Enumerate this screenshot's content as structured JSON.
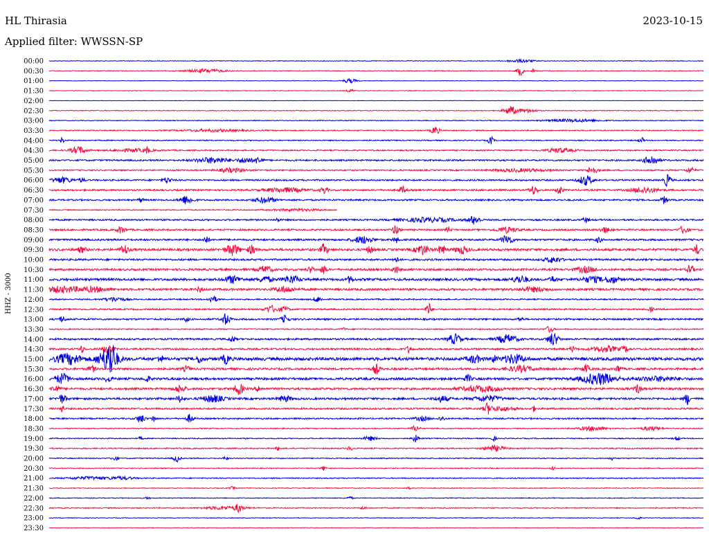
{
  "header": {
    "station": "HL Thirasia",
    "date": "2023-10-15",
    "filter": "Applied filter: WWSSN-SP"
  },
  "chart_data": {
    "type": "line",
    "title": "HL Thirasia",
    "subtitle": "Applied filter: WWSSN-SP",
    "ylabel": "HHZ - 3000",
    "xlabel": "",
    "grid": false,
    "row_minutes": 30,
    "trace_colors": [
      "#0000dd",
      "#ee1144"
    ],
    "rows": [
      {
        "label": "00:00",
        "level": 0.5,
        "events": [
          [
            0.72,
            2.0,
            0.02
          ]
        ]
      },
      {
        "label": "00:30",
        "level": 0.6,
        "events": [
          [
            0.24,
            2.5,
            0.03
          ],
          [
            0.72,
            7.0,
            0.005
          ],
          [
            0.74,
            3.0,
            0.002
          ]
        ]
      },
      {
        "label": "01:00",
        "level": 0.4,
        "events": [
          [
            0.46,
            3.0,
            0.01
          ]
        ]
      },
      {
        "label": "01:30",
        "level": 0.5,
        "events": [
          [
            0.46,
            2.0,
            0.005
          ]
        ]
      },
      {
        "label": "02:00",
        "level": 0.3,
        "events": []
      },
      {
        "label": "02:30",
        "level": 0.6,
        "events": [
          [
            0.705,
            6.0,
            0.01
          ],
          [
            0.73,
            2.5,
            0.015
          ]
        ]
      },
      {
        "label": "03:00",
        "level": 0.6,
        "events": [
          [
            0.8,
            2.0,
            0.04
          ]
        ]
      },
      {
        "label": "03:30",
        "level": 0.8,
        "events": [
          [
            0.59,
            6.0,
            0.006
          ],
          [
            0.25,
            1.5,
            0.05
          ]
        ]
      },
      {
        "label": "04:00",
        "level": 0.8,
        "events": [
          [
            0.02,
            4.0,
            0.003
          ],
          [
            0.675,
            6.0,
            0.004
          ],
          [
            0.905,
            4.0,
            0.004
          ]
        ]
      },
      {
        "label": "04:30",
        "level": 1.0,
        "events": [
          [
            0.045,
            5.0,
            0.012
          ],
          [
            0.15,
            5.0,
            0.002
          ],
          [
            0.13,
            2.0,
            0.03
          ],
          [
            0.78,
            3.0,
            0.02
          ]
        ]
      },
      {
        "label": "05:00",
        "level": 1.2,
        "events": [
          [
            0.25,
            4.0,
            0.025
          ],
          [
            0.3,
            4.0,
            0.01
          ],
          [
            0.32,
            5.0,
            0.006
          ],
          [
            0.92,
            7.0,
            0.01
          ]
        ]
      },
      {
        "label": "05:30",
        "level": 1.0,
        "events": [
          [
            0.28,
            3.0,
            0.02
          ],
          [
            0.83,
            5.0,
            0.008
          ],
          [
            0.98,
            4.0,
            0.006
          ],
          [
            0.72,
            2.0,
            0.04
          ]
        ]
      },
      {
        "label": "06:00",
        "level": 1.2,
        "events": [
          [
            0.02,
            4.0,
            0.015
          ],
          [
            0.18,
            4.0,
            0.006
          ],
          [
            0.82,
            7.0,
            0.01
          ],
          [
            0.945,
            9.0,
            0.005
          ],
          [
            0.05,
            3.0,
            0.004
          ]
        ]
      },
      {
        "label": "06:30",
        "level": 1.3,
        "events": [
          [
            0.42,
            5.0,
            0.005
          ],
          [
            0.54,
            5.0,
            0.005
          ],
          [
            0.74,
            6.0,
            0.006
          ],
          [
            0.78,
            7.0,
            0.004
          ],
          [
            0.91,
            4.0,
            0.02
          ],
          [
            0.36,
            3.0,
            0.03
          ]
        ]
      },
      {
        "label": "07:00",
        "level": 1.2,
        "events": [
          [
            0.21,
            6.0,
            0.01
          ],
          [
            0.33,
            4.0,
            0.015
          ],
          [
            0.94,
            5.0,
            0.005
          ],
          [
            0.14,
            3.0,
            0.004
          ]
        ]
      },
      {
        "label": "07:30",
        "level": 0.8,
        "events": [
          [
            0.38,
            1.5,
            0.04
          ]
        ],
        "end": 0.44
      },
      {
        "label": "08:00",
        "level": 1.2,
        "events": [
          [
            0.58,
            3.0,
            0.04
          ],
          [
            0.65,
            6.0,
            0.008
          ],
          [
            0.82,
            4.0,
            0.004
          ],
          [
            0.35,
            3.0,
            0.003
          ]
        ]
      },
      {
        "label": "08:30",
        "level": 1.3,
        "events": [
          [
            0.11,
            5.0,
            0.006
          ],
          [
            0.53,
            7.0,
            0.005
          ],
          [
            0.61,
            4.0,
            0.004
          ],
          [
            0.7,
            4.0,
            0.015
          ],
          [
            0.85,
            4.0,
            0.008
          ],
          [
            0.97,
            6.0,
            0.006
          ]
        ]
      },
      {
        "label": "09:00",
        "level": 1.4,
        "events": [
          [
            0.24,
            5.0,
            0.004
          ],
          [
            0.48,
            5.0,
            0.015
          ],
          [
            0.53,
            4.0,
            0.004
          ],
          [
            0.7,
            7.0,
            0.008
          ],
          [
            0.84,
            4.0,
            0.004
          ]
        ]
      },
      {
        "label": "09:30",
        "level": 1.8,
        "events": [
          [
            0.05,
            4.0,
            0.006
          ],
          [
            0.115,
            7.0,
            0.006
          ],
          [
            0.28,
            8.0,
            0.01
          ],
          [
            0.31,
            6.0,
            0.006
          ],
          [
            0.42,
            8.0,
            0.005
          ],
          [
            0.49,
            5.0,
            0.005
          ],
          [
            0.57,
            7.0,
            0.01
          ],
          [
            0.6,
            6.0,
            0.006
          ],
          [
            0.63,
            5.0,
            0.01
          ],
          [
            0.99,
            7.0,
            0.004
          ]
        ]
      },
      {
        "label": "10:00",
        "level": 1.4,
        "events": [
          [
            0.77,
            4.0,
            0.012
          ],
          [
            0.53,
            3.0,
            0.005
          ]
        ]
      },
      {
        "label": "10:30",
        "level": 1.6,
        "events": [
          [
            0.33,
            5.0,
            0.01
          ],
          [
            0.42,
            7.0,
            0.004
          ],
          [
            0.4,
            4.0,
            0.005
          ],
          [
            0.53,
            5.0,
            0.005
          ],
          [
            0.82,
            4.0,
            0.015
          ],
          [
            0.98,
            8.0,
            0.004
          ]
        ]
      },
      {
        "label": "11:00",
        "level": 1.8,
        "events": [
          [
            0.28,
            5.0,
            0.012
          ],
          [
            0.33,
            4.0,
            0.01
          ],
          [
            0.37,
            5.0,
            0.012
          ],
          [
            0.46,
            5.0,
            0.004
          ],
          [
            0.72,
            5.0,
            0.012
          ],
          [
            0.77,
            4.0,
            0.005
          ],
          [
            0.83,
            4.0,
            0.015
          ],
          [
            0.86,
            5.0,
            0.01
          ]
        ]
      },
      {
        "label": "11:30",
        "level": 1.7,
        "events": [
          [
            0.02,
            4.0,
            0.03
          ],
          [
            0.07,
            3.0,
            0.02
          ],
          [
            0.23,
            4.0,
            0.004
          ],
          [
            0.36,
            4.0,
            0.015
          ],
          [
            0.74,
            3.0,
            0.02
          ]
        ]
      },
      {
        "label": "12:00",
        "level": 1.0,
        "events": [
          [
            0.1,
            3.0,
            0.015
          ],
          [
            0.25,
            5.0,
            0.006
          ],
          [
            0.41,
            4.0,
            0.006
          ]
        ]
      },
      {
        "label": "12:30",
        "level": 1.2,
        "events": [
          [
            0.34,
            5.0,
            0.01
          ],
          [
            0.36,
            4.0,
            0.006
          ],
          [
            0.58,
            9.0,
            0.004
          ],
          [
            0.92,
            3.0,
            0.004
          ]
        ]
      },
      {
        "label": "13:00",
        "level": 1.3,
        "events": [
          [
            0.02,
            4.0,
            0.005
          ],
          [
            0.27,
            8.0,
            0.006
          ],
          [
            0.36,
            5.0,
            0.006
          ],
          [
            0.21,
            3.0,
            0.004
          ],
          [
            0.72,
            3.0,
            0.004
          ]
        ]
      },
      {
        "label": "13:30",
        "level": 0.9,
        "events": [
          [
            0.765,
            5.0,
            0.005
          ],
          [
            0.45,
            2.0,
            0.003
          ]
        ]
      },
      {
        "label": "14:00",
        "level": 1.4,
        "events": [
          [
            0.28,
            4.0,
            0.005
          ],
          [
            0.62,
            7.0,
            0.01
          ],
          [
            0.7,
            6.0,
            0.015
          ],
          [
            0.77,
            9.0,
            0.008
          ]
        ]
      },
      {
        "label": "14:30",
        "level": 1.4,
        "events": [
          [
            0.05,
            5.0,
            0.004
          ],
          [
            0.09,
            6.0,
            0.008
          ],
          [
            0.55,
            5.0,
            0.004
          ],
          [
            0.8,
            4.0,
            0.004
          ],
          [
            0.85,
            4.0,
            0.02
          ],
          [
            0.88,
            4.0,
            0.005
          ]
        ]
      },
      {
        "label": "15:00",
        "level": 2.4,
        "events": [
          [
            0.03,
            7.0,
            0.02
          ],
          [
            0.09,
            16.0,
            0.015
          ],
          [
            0.095,
            12.0,
            0.005
          ],
          [
            0.17,
            5.0,
            0.004
          ],
          [
            0.23,
            6.0,
            0.004
          ],
          [
            0.27,
            6.0,
            0.006
          ],
          [
            0.65,
            5.0,
            0.01
          ],
          [
            0.68,
            4.0,
            0.005
          ],
          [
            0.71,
            6.0,
            0.015
          ]
        ]
      },
      {
        "label": "15:30",
        "level": 1.6,
        "events": [
          [
            0.065,
            5.0,
            0.005
          ],
          [
            0.21,
            4.0,
            0.005
          ],
          [
            0.5,
            7.0,
            0.005
          ],
          [
            0.72,
            4.0,
            0.02
          ],
          [
            0.82,
            6.0,
            0.005
          ],
          [
            0.87,
            5.0,
            0.004
          ]
        ]
      },
      {
        "label": "16:00",
        "level": 1.8,
        "events": [
          [
            0.02,
            7.0,
            0.01
          ],
          [
            0.09,
            4.0,
            0.005
          ],
          [
            0.15,
            4.0,
            0.004
          ],
          [
            0.64,
            5.0,
            0.005
          ],
          [
            0.84,
            8.0,
            0.025
          ],
          [
            0.93,
            3.0,
            0.03
          ]
        ]
      },
      {
        "label": "16:30",
        "level": 1.7,
        "events": [
          [
            0.01,
            5.0,
            0.006
          ],
          [
            0.2,
            5.0,
            0.008
          ],
          [
            0.29,
            9.0,
            0.006
          ],
          [
            0.32,
            4.0,
            0.004
          ],
          [
            0.66,
            4.0,
            0.03
          ],
          [
            0.9,
            6.0,
            0.005
          ]
        ]
      },
      {
        "label": "17:00",
        "level": 1.6,
        "events": [
          [
            0.02,
            6.0,
            0.006
          ],
          [
            0.2,
            5.0,
            0.005
          ],
          [
            0.25,
            5.0,
            0.015
          ],
          [
            0.36,
            4.0,
            0.01
          ],
          [
            0.6,
            4.0,
            0.01
          ],
          [
            0.67,
            4.0,
            0.02
          ],
          [
            0.975,
            8.0,
            0.004
          ]
        ]
      },
      {
        "label": "17:30",
        "level": 1.3,
        "events": [
          [
            0.02,
            5.0,
            0.003
          ],
          [
            0.67,
            7.0,
            0.005
          ],
          [
            0.69,
            3.0,
            0.02
          ],
          [
            0.74,
            4.0,
            0.003
          ]
        ]
      },
      {
        "label": "18:00",
        "level": 1.1,
        "events": [
          [
            0.14,
            6.0,
            0.006
          ],
          [
            0.16,
            5.0,
            0.003
          ],
          [
            0.215,
            6.0,
            0.005
          ],
          [
            0.57,
            3.0,
            0.01
          ],
          [
            0.6,
            3.0,
            0.005
          ]
        ]
      },
      {
        "label": "18:30",
        "level": 0.8,
        "events": [
          [
            0.56,
            4.0,
            0.006
          ],
          [
            0.83,
            3.0,
            0.02
          ],
          [
            0.92,
            3.0,
            0.015
          ]
        ]
      },
      {
        "label": "19:00",
        "level": 0.8,
        "events": [
          [
            0.14,
            3.0,
            0.003
          ],
          [
            0.49,
            3.0,
            0.01
          ],
          [
            0.56,
            5.0,
            0.005
          ],
          [
            0.68,
            4.0,
            0.003
          ],
          [
            0.96,
            3.0,
            0.004
          ]
        ]
      },
      {
        "label": "19:30",
        "level": 0.9,
        "events": [
          [
            0.35,
            3.0,
            0.003
          ],
          [
            0.46,
            3.0,
            0.004
          ],
          [
            0.68,
            4.0,
            0.015
          ]
        ]
      },
      {
        "label": "20:00",
        "level": 0.8,
        "events": [
          [
            0.1,
            3.0,
            0.005
          ],
          [
            0.195,
            5.0,
            0.005
          ],
          [
            0.27,
            3.0,
            0.003
          ],
          [
            0.86,
            3.0,
            0.003
          ]
        ]
      },
      {
        "label": "20:30",
        "level": 0.7,
        "events": [
          [
            0.42,
            3.0,
            0.004
          ],
          [
            0.77,
            2.5,
            0.003
          ]
        ]
      },
      {
        "label": "21:00",
        "level": 0.8,
        "events": [
          [
            0.06,
            2.0,
            0.03
          ],
          [
            0.11,
            2.0,
            0.02
          ]
        ]
      },
      {
        "label": "21:30",
        "level": 0.6,
        "events": [
          [
            0.28,
            2.0,
            0.004
          ],
          [
            0.55,
            2.0,
            0.003
          ]
        ]
      },
      {
        "label": "22:00",
        "level": 0.6,
        "events": [
          [
            0.15,
            2.0,
            0.003
          ],
          [
            0.46,
            2.0,
            0.004
          ]
        ]
      },
      {
        "label": "22:30",
        "level": 0.8,
        "events": [
          [
            0.27,
            2.5,
            0.03
          ],
          [
            0.29,
            5.0,
            0.005
          ],
          [
            0.48,
            2.0,
            0.004
          ]
        ]
      },
      {
        "label": "23:00",
        "level": 0.5,
        "events": [
          [
            0.9,
            2.0,
            0.004
          ]
        ]
      },
      {
        "label": "23:30",
        "level": 0.5,
        "events": []
      }
    ]
  }
}
